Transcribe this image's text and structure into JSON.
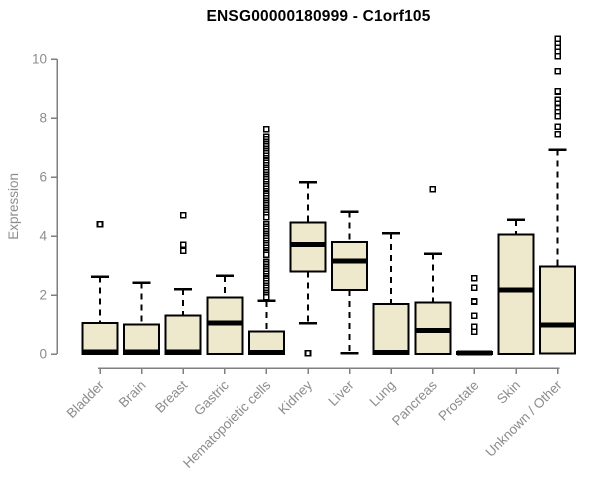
{
  "header": {
    "title": "ENSG00000180999 - C1orf105"
  },
  "colors": {
    "box_fill": "#EEE8CD",
    "box_border": "#000000",
    "median": "#000000",
    "whisker": "#000000",
    "axis": "#7F7F7F",
    "tick_text": "#8C8C8C",
    "title_text": "#000000",
    "background": "#FFFFFF"
  },
  "chart_data": {
    "type": "boxplot",
    "title": "ENSG00000180999 - C1orf105",
    "xlabel": "",
    "ylabel": "Expression",
    "ylim": [
      0,
      10
    ],
    "yticks": [
      0,
      2,
      4,
      6,
      8,
      10
    ],
    "grid": false,
    "legend": "none",
    "categories": [
      "Bladder",
      "Brain",
      "Breast",
      "Gastric",
      "Hematopoietic cells",
      "Kidney",
      "Liver",
      "Lung",
      "Pancreas",
      "Prostate",
      "Skin",
      "Unknown / Other"
    ],
    "series": [
      {
        "label": "Bladder",
        "q1": 0,
        "median": 0.07,
        "q3": 1.05,
        "whisker_low": 0,
        "whisker_high": 2.62,
        "outliers": [
          4.4
        ]
      },
      {
        "label": "Brain",
        "q1": 0,
        "median": 0.07,
        "q3": 1.0,
        "whisker_low": 0,
        "whisker_high": 2.42,
        "outliers": []
      },
      {
        "label": "Breast",
        "q1": 0,
        "median": 0.07,
        "q3": 1.3,
        "whisker_low": 0,
        "whisker_high": 2.2,
        "outliers": [
          4.7,
          3.7,
          3.5
        ]
      },
      {
        "label": "Gastric",
        "q1": 0,
        "median": 1.05,
        "q3": 1.92,
        "whisker_low": 0,
        "whisker_high": 2.65,
        "outliers": []
      },
      {
        "label": "Hematopoietic cells",
        "q1": 0,
        "median": 0.05,
        "q3": 0.76,
        "whisker_low": 0,
        "whisker_high": 1.8,
        "outliers": [
          7.62,
          7.36,
          7.28,
          7.2,
          7.12,
          7.04,
          6.96,
          6.88,
          6.8,
          6.72,
          6.64,
          6.56,
          6.48,
          6.4,
          6.32,
          6.24,
          6.16,
          6.08,
          6.0,
          5.92,
          5.84,
          5.76,
          5.68,
          5.6,
          5.52,
          5.44,
          5.36,
          5.28,
          5.2,
          5.12,
          5.04,
          4.96,
          4.88,
          4.8,
          4.72,
          4.64,
          4.4,
          4.32,
          4.24,
          4.16,
          4.08,
          4.0,
          3.92,
          3.84,
          3.76,
          3.68,
          3.6,
          3.52,
          3.44,
          3.36,
          3.12,
          3.04,
          2.96,
          2.88,
          2.8,
          2.72,
          2.64,
          2.56,
          2.48,
          2.4,
          2.32,
          2.24,
          2.16,
          2.08,
          2.0,
          1.92
        ]
      },
      {
        "label": "Kidney",
        "q1": 2.8,
        "median": 3.72,
        "q3": 4.46,
        "whisker_low": 1.05,
        "whisker_high": 5.82,
        "outliers": [
          0.03
        ]
      },
      {
        "label": "Liver",
        "q1": 2.17,
        "median": 3.16,
        "q3": 3.8,
        "whisker_low": 0.02,
        "whisker_high": 4.83,
        "outliers": []
      },
      {
        "label": "Lung",
        "q1": 0,
        "median": 0.05,
        "q3": 1.7,
        "whisker_low": 0,
        "whisker_high": 4.1,
        "outliers": []
      },
      {
        "label": "Pancreas",
        "q1": 0,
        "median": 0.8,
        "q3": 1.75,
        "whisker_low": 0,
        "whisker_high": 3.4,
        "outliers": [
          5.58
        ]
      },
      {
        "label": "Prostate",
        "q1": 0,
        "median": 0.03,
        "q3": 0.06,
        "whisker_low": 0,
        "whisker_high": 0.06,
        "outliers": [
          2.57,
          2.25,
          1.78,
          1.3,
          0.92,
          0.76
        ]
      },
      {
        "label": "Skin",
        "q1": 0,
        "median": 2.17,
        "q3": 4.05,
        "whisker_low": 0,
        "whisker_high": 4.55,
        "outliers": []
      },
      {
        "label": "Unknown / Other",
        "q1": 0.02,
        "median": 0.98,
        "q3": 2.96,
        "whisker_low": 0.02,
        "whisker_high": 6.93,
        "outliers": [
          10.68,
          10.52,
          10.38,
          10.24,
          10.1,
          9.58,
          8.9,
          8.62,
          8.48,
          8.34,
          8.2,
          8.06,
          7.7,
          7.45
        ]
      }
    ]
  }
}
